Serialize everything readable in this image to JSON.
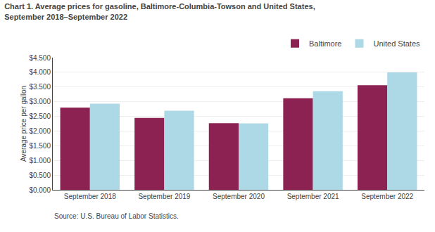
{
  "chart_data": {
    "type": "bar",
    "title": "Chart 1. Average prices for gasoline, Baltimore-Columbia-Towson and United States,",
    "subtitle": "September 2018–September 2022",
    "ylabel": "Average price per gallon",
    "annotations": [
      "Source: U.S. Bureau of Labor Statistics."
    ],
    "categories": [
      "September 2018",
      "September 2019",
      "September 2020",
      "September 2021",
      "September 2022"
    ],
    "series": [
      {
        "name": "Baltimore",
        "color": "#8B2252",
        "values": [
          2.8,
          2.45,
          2.27,
          3.12,
          3.56
        ]
      },
      {
        "name": "United States",
        "color": "#ADD8E6",
        "values": [
          2.93,
          2.69,
          2.26,
          3.36,
          4.0
        ]
      }
    ],
    "ylim": [
      0,
      4.5
    ],
    "yticks": [
      {
        "value": 0.0,
        "label": "$0.000"
      },
      {
        "value": 0.5,
        "label": "$0.500"
      },
      {
        "value": 1.0,
        "label": "$1.000"
      },
      {
        "value": 1.5,
        "label": "$1.500"
      },
      {
        "value": 2.0,
        "label": "$2.000"
      },
      {
        "value": 2.5,
        "label": "$2.500"
      },
      {
        "value": 3.0,
        "label": "$3.000"
      },
      {
        "value": 3.5,
        "label": "$3.500"
      },
      {
        "value": 4.0,
        "label": "$4.000"
      },
      {
        "value": 4.5,
        "label": "$4.500"
      }
    ],
    "grid": true,
    "legend": "top"
  }
}
